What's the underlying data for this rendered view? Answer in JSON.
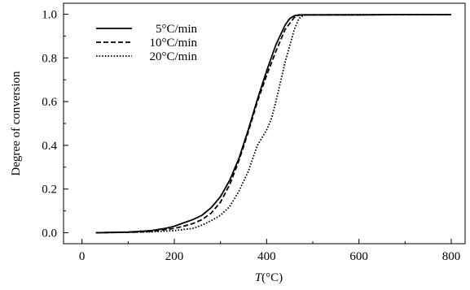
{
  "chart_data": {
    "type": "line",
    "xlabel_italic": "T",
    "xlabel_rest": "(°C)",
    "ylabel": "Degree of conversion",
    "xlim": [
      -40,
      830
    ],
    "ylim": [
      -0.05,
      1.05
    ],
    "x_ticks": [
      0,
      200,
      400,
      600,
      800
    ],
    "y_ticks": [
      0.0,
      0.2,
      0.4,
      0.6,
      0.8,
      1.0
    ],
    "x_tick_labels": [
      "0",
      "200",
      "400",
      "600",
      "800"
    ],
    "y_tick_labels": [
      "0.0",
      "0.2",
      "0.4",
      "0.6",
      "0.8",
      "1.0"
    ],
    "legend_position": "top-left",
    "series": [
      {
        "name": "5°C/min",
        "style": "solid",
        "x": [
          30,
          100,
          150,
          180,
          200,
          220,
          240,
          260,
          280,
          300,
          320,
          340,
          360,
          380,
          400,
          420,
          440,
          450,
          460,
          470,
          480,
          500,
          600,
          700,
          800
        ],
        "y": [
          0.0,
          0.003,
          0.01,
          0.02,
          0.03,
          0.045,
          0.06,
          0.08,
          0.115,
          0.165,
          0.24,
          0.34,
          0.47,
          0.61,
          0.74,
          0.86,
          0.95,
          0.98,
          0.993,
          0.997,
          0.997,
          0.997,
          0.997,
          0.998,
          0.998
        ]
      },
      {
        "name": "10°C/min",
        "style": "dashed",
        "x": [
          30,
          100,
          150,
          200,
          220,
          240,
          260,
          280,
          300,
          320,
          340,
          360,
          380,
          400,
          420,
          440,
          460,
          470,
          480,
          500,
          600,
          700,
          800
        ],
        "y": [
          0.0,
          0.002,
          0.006,
          0.02,
          0.03,
          0.042,
          0.06,
          0.09,
          0.14,
          0.22,
          0.33,
          0.46,
          0.6,
          0.72,
          0.83,
          0.93,
          0.985,
          0.995,
          0.997,
          0.997,
          0.997,
          0.998,
          0.998
        ]
      },
      {
        "name": "20°C/min",
        "style": "dotted",
        "x": [
          30,
          100,
          150,
          200,
          240,
          260,
          280,
          300,
          320,
          340,
          360,
          380,
          400,
          410,
          420,
          440,
          460,
          470,
          480,
          490,
          500,
          600,
          700,
          800
        ],
        "y": [
          0.0,
          0.002,
          0.004,
          0.01,
          0.02,
          0.035,
          0.055,
          0.08,
          0.12,
          0.19,
          0.28,
          0.4,
          0.47,
          0.52,
          0.6,
          0.78,
          0.93,
          0.98,
          0.995,
          0.997,
          0.997,
          0.998,
          0.998,
          0.998
        ]
      }
    ]
  }
}
